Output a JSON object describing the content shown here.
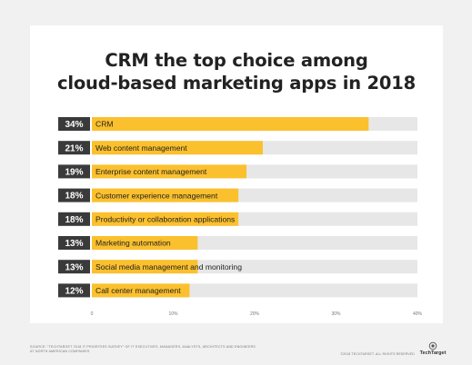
{
  "chart_data": {
    "type": "bar",
    "orientation": "horizontal",
    "title": "CRM the top choice among cloud-based marketing apps in 2018",
    "title_lines": [
      "CRM the top choice among",
      "cloud-based marketing apps in 2018"
    ],
    "categories": [
      "CRM",
      "Web content management",
      "Enterprise content management",
      "Customer experience management",
      "Productivity or collaboration applications",
      "Marketing automation",
      "Social media management and monitoring",
      "Call center management"
    ],
    "values": [
      34,
      21,
      19,
      18,
      18,
      13,
      13,
      12
    ],
    "value_labels": [
      "34%",
      "21%",
      "19%",
      "18%",
      "18%",
      "13%",
      "13%",
      "12%"
    ],
    "xlim": [
      0,
      40
    ],
    "x_ticks": [
      0,
      10,
      20,
      30,
      40
    ],
    "x_tick_labels": [
      "0",
      "10%",
      "20%",
      "30%",
      "40%"
    ],
    "grid": false,
    "colors": {
      "bar": "#fbc02d",
      "track": "#e7e7e7",
      "label_box": "#3a3a3a",
      "label_text": "#ffffff",
      "category_text": "#222222",
      "tick_text": "#777777"
    }
  },
  "footer": {
    "source": "SOURCE: \"TECHTARGET 2018 IT PRIORITIES SURVEY\" OF IT EXECUTIVES, MANAGERS, ANALYSTS, ARCHITECTS AND ENGINEERS AT NORTH AMERICAN COMPANIES",
    "copyright": "©2018 TECHTARGET. ALL RIGHTS RESERVED",
    "brand": "TechTarget"
  }
}
